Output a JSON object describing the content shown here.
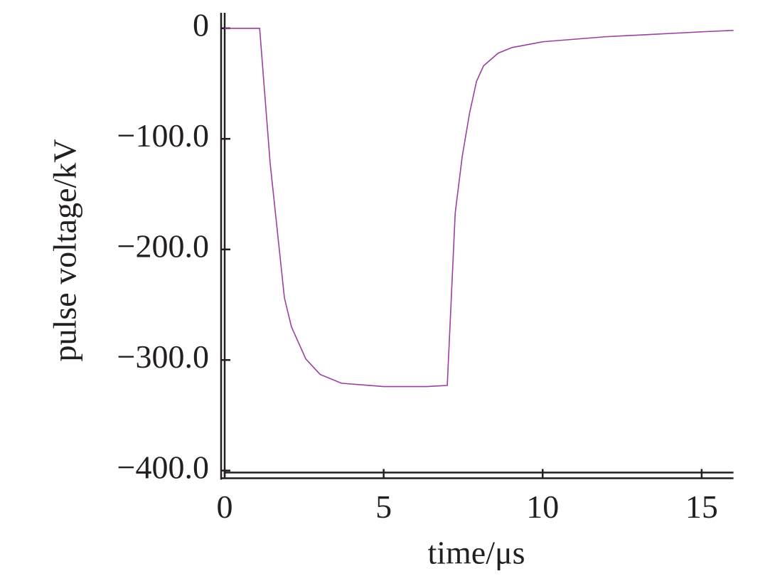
{
  "chart_data": {
    "type": "line",
    "x_label": "time/μs",
    "y_label": "pulse voltage/kV",
    "x": [
      0,
      1.1,
      1.43,
      1.88,
      2.1,
      2.55,
      3.0,
      3.67,
      5.0,
      6.35,
      7.0,
      7.25,
      7.47,
      7.7,
      7.92,
      8.14,
      8.6,
      9.04,
      10.0,
      11.95,
      15.0,
      16.0
    ],
    "values": [
      0,
      0,
      -122,
      -244,
      -270,
      -299,
      -313,
      -321,
      -324,
      -324,
      -323,
      -167,
      -116,
      -77,
      -48,
      -34,
      -22.5,
      -17.4,
      -12.2,
      -7.7,
      -3.2,
      -1.9
    ],
    "color": "#9b3fa0",
    "xlim": [
      0,
      16
    ],
    "xticks": [
      0,
      5,
      10,
      15
    ],
    "ylim": [
      -405,
      14
    ],
    "yticks": [
      0,
      {
        "value": -100,
        "label": "−100.0"
      },
      {
        "value": -200,
        "label": "−200.0"
      },
      {
        "value": -300,
        "label": "−300.0"
      },
      {
        "value": -400,
        "label": "−400.0"
      }
    ],
    "grid": false
  }
}
